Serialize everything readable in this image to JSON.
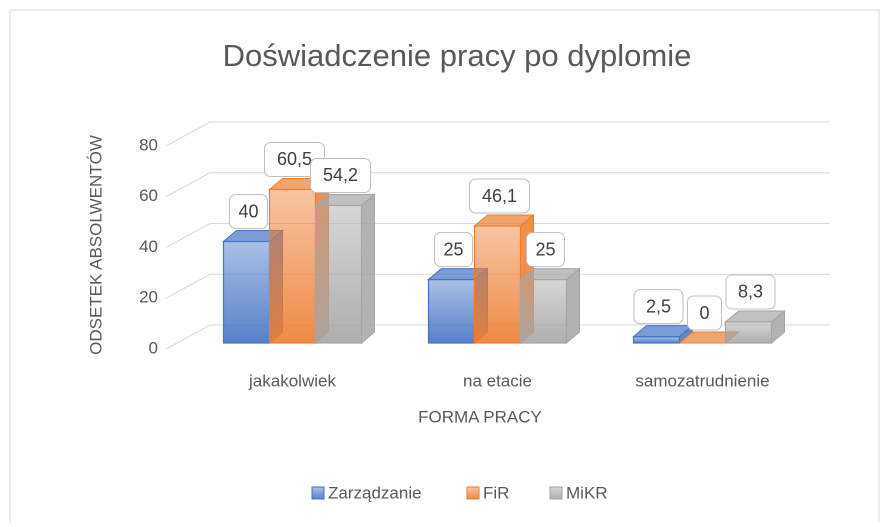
{
  "chart_data": {
    "type": "bar3d",
    "title": "Doświadczenie pracy po dyplomie",
    "x_label": "FORMA PRACY",
    "y_label": "ODSETEK ABSOLWENTÓW",
    "categories": [
      "jakakolwiek",
      "na etacie",
      "samozatrudnienie"
    ],
    "series": [
      {
        "name": "Zarządzanie",
        "color": "#4472c4",
        "values": [
          40,
          25,
          2.5
        ],
        "value_labels": [
          "40",
          "25",
          "2,5"
        ]
      },
      {
        "name": "FiR",
        "color": "#ed7d31",
        "values": [
          60.5,
          46.1,
          0
        ],
        "value_labels": [
          "60,5",
          "46,1",
          "0"
        ]
      },
      {
        "name": "MiKR",
        "color": "#a5a5a5",
        "values": [
          54.2,
          25,
          8.3
        ],
        "value_labels": [
          "54,2",
          "25",
          "8,3"
        ]
      }
    ],
    "ylim": [
      0,
      80
    ],
    "yticks": [
      0,
      20,
      40,
      60,
      80
    ],
    "grid": true,
    "legend": "bottom"
  }
}
